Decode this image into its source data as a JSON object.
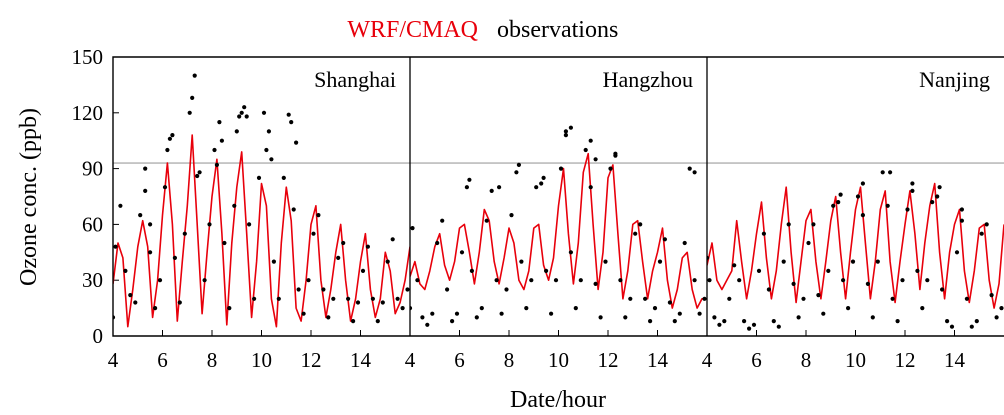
{
  "legend": {
    "model_label": "WRF/CMAQ",
    "obs_label": "observations",
    "model_color": "#e8000b",
    "obs_color": "#000000"
  },
  "chart_data": {
    "type": "line",
    "ylabel": "Ozone conc. (ppb)",
    "xlabel": "Date/hour",
    "ylim": [
      0,
      150
    ],
    "yticks": [
      0,
      30,
      60,
      90,
      120,
      150
    ],
    "reference_line": {
      "y": 93,
      "color": "#bbbbbb"
    },
    "panels": [
      {
        "title": "Shanghai",
        "xlim": [
          4,
          16
        ],
        "xticks": [
          4,
          6,
          8,
          10,
          12,
          14
        ],
        "series": [
          {
            "name": "WRF/CMAQ",
            "style": "line",
            "color": "#e8000b",
            "x": [
              4,
              4.2,
              4.4,
              4.6,
              4.8,
              5,
              5.2,
              5.4,
              5.6,
              5.8,
              6,
              6.2,
              6.4,
              6.6,
              6.8,
              7,
              7.2,
              7.4,
              7.6,
              7.8,
              8,
              8.2,
              8.4,
              8.6,
              8.8,
              9,
              9.2,
              9.4,
              9.6,
              9.8,
              10,
              10.2,
              10.4,
              10.6,
              10.8,
              11,
              11.2,
              11.4,
              11.6,
              11.8,
              12,
              12.2,
              12.4,
              12.6,
              12.8,
              13,
              13.2,
              13.4,
              13.6,
              13.8,
              14,
              14.2,
              14.4,
              14.6,
              14.8,
              15,
              15.2,
              15.4,
              15.6,
              15.8,
              16
            ],
            "y": [
              28,
              50,
              42,
              5,
              25,
              48,
              62,
              48,
              10,
              30,
              65,
              93,
              60,
              8,
              40,
              70,
              108,
              60,
              12,
              45,
              75,
              95,
              55,
              6,
              50,
              80,
              99,
              55,
              10,
              40,
              82,
              70,
              20,
              5,
              50,
              80,
              62,
              15,
              8,
              30,
              60,
              70,
              30,
              10,
              25,
              45,
              60,
              30,
              8,
              20,
              40,
              55,
              25,
              10,
              20,
              45,
              35,
              12,
              18,
              30,
              48
            ]
          },
          {
            "name": "observations",
            "style": "scatter",
            "color": "#000000",
            "x": [
              4,
              4.1,
              4.3,
              4.5,
              4.7,
              4.9,
              5.1,
              5.3,
              5.5,
              5.7,
              5.9,
              6.1,
              6.3,
              6.5,
              6.7,
              6.9,
              7.1,
              7.3,
              7.5,
              7.7,
              7.9,
              8.1,
              8.3,
              8.5,
              8.7,
              8.9,
              9.1,
              9.3,
              9.5,
              9.7,
              9.9,
              10.1,
              10.3,
              10.5,
              10.7,
              10.9,
              11.1,
              11.3,
              11.5,
              11.7,
              11.9,
              12.1,
              12.3,
              12.5,
              12.7,
              12.9,
              13.1,
              13.3,
              13.5,
              13.7,
              13.9,
              14.1,
              14.3,
              14.5,
              14.7,
              14.9,
              15.1,
              15.3,
              15.5,
              15.7,
              15.9,
              7.2,
              7.4,
              9.0,
              9.2,
              9.4,
              10.2,
              10.4,
              11.2,
              11.4,
              8.2,
              8.4,
              6.2,
              6.4,
              5.3,
              5.5
            ],
            "y": [
              10,
              48,
              70,
              35,
              22,
              18,
              65,
              90,
              45,
              15,
              30,
              80,
              106,
              42,
              18,
              55,
              120,
              140,
              88,
              30,
              60,
              100,
              115,
              50,
              15,
              70,
              118,
              123,
              60,
              20,
              85,
              120,
              110,
              40,
              20,
              85,
              119,
              68,
              25,
              12,
              30,
              55,
              65,
              25,
              10,
              20,
              42,
              50,
              20,
              8,
              18,
              35,
              48,
              20,
              8,
              18,
              40,
              52,
              20,
              15,
              25,
              128,
              86,
              110,
              120,
              118,
              100,
              95,
              115,
              104,
              92,
              105,
              100,
              108,
              78,
              60
            ]
          }
        ]
      },
      {
        "title": "Hangzhou",
        "xlim": [
          4,
          16
        ],
        "xticks": [
          4,
          6,
          8,
          10,
          12,
          14
        ],
        "series": [
          {
            "name": "WRF/CMAQ",
            "style": "line",
            "color": "#e8000b",
            "x": [
              4,
              4.2,
              4.4,
              4.6,
              4.8,
              5,
              5.2,
              5.4,
              5.6,
              5.8,
              6,
              6.2,
              6.4,
              6.6,
              6.8,
              7,
              7.2,
              7.4,
              7.6,
              7.8,
              8,
              8.2,
              8.4,
              8.6,
              8.8,
              9,
              9.2,
              9.4,
              9.6,
              9.8,
              10,
              10.2,
              10.4,
              10.6,
              10.8,
              11,
              11.2,
              11.4,
              11.6,
              11.8,
              12,
              12.2,
              12.4,
              12.6,
              12.8,
              13,
              13.2,
              13.4,
              13.6,
              13.8,
              14,
              14.2,
              14.4,
              14.6,
              14.8,
              15,
              15.2,
              15.4,
              15.6,
              15.8,
              16
            ],
            "y": [
              32,
              40,
              28,
              25,
              35,
              48,
              55,
              38,
              30,
              40,
              58,
              60,
              45,
              28,
              45,
              68,
              62,
              40,
              28,
              42,
              58,
              50,
              30,
              25,
              35,
              58,
              60,
              38,
              30,
              42,
              70,
              90,
              55,
              28,
              50,
              88,
              98,
              60,
              25,
              45,
              85,
              92,
              55,
              20,
              35,
              60,
              62,
              40,
              20,
              35,
              45,
              58,
              30,
              15,
              25,
              42,
              45,
              25,
              15,
              20,
              20
            ]
          },
          {
            "name": "observations",
            "style": "scatter",
            "color": "#000000",
            "x": [
              4,
              4.1,
              4.3,
              4.5,
              4.7,
              4.9,
              5.1,
              5.3,
              5.5,
              5.7,
              5.9,
              6.1,
              6.3,
              6.5,
              6.7,
              6.9,
              7.1,
              7.3,
              7.5,
              7.7,
              7.9,
              8.1,
              8.3,
              8.5,
              8.7,
              8.9,
              9.1,
              9.3,
              9.5,
              9.7,
              9.9,
              10.1,
              10.3,
              10.5,
              10.7,
              10.9,
              11.1,
              11.3,
              11.5,
              11.7,
              11.9,
              12.1,
              12.3,
              12.5,
              12.7,
              12.9,
              13.1,
              13.3,
              13.5,
              13.7,
              13.9,
              14.1,
              14.3,
              14.5,
              14.7,
              14.9,
              15.1,
              15.3,
              15.5,
              15.7,
              15.9,
              10.3,
              10.5,
              11.3,
              11.5,
              12.3,
              8.4,
              9.4,
              15.5,
              6.4,
              7.6
            ],
            "y": [
              15,
              58,
              30,
              10,
              6,
              12,
              50,
              62,
              25,
              8,
              12,
              45,
              80,
              35,
              10,
              15,
              62,
              78,
              30,
              12,
              25,
              65,
              88,
              40,
              15,
              30,
              80,
              82,
              35,
              12,
              30,
              90,
              110,
              45,
              15,
              30,
              100,
              80,
              28,
              10,
              40,
              90,
              97,
              30,
              10,
              20,
              55,
              60,
              20,
              8,
              15,
              40,
              52,
              18,
              8,
              12,
              50,
              90,
              30,
              12,
              20,
              108,
              112,
              105,
              95,
              98,
              92,
              85,
              88,
              84,
              80
            ]
          }
        ]
      },
      {
        "title": "Nanjing",
        "xlim": [
          4,
          16
        ],
        "xticks": [
          4,
          6,
          8,
          10,
          12,
          14
        ],
        "series": [
          {
            "name": "WRF/CMAQ",
            "style": "line",
            "color": "#e8000b",
            "x": [
              4,
              4.2,
              4.4,
              4.6,
              4.8,
              5,
              5.2,
              5.4,
              5.6,
              5.8,
              6,
              6.2,
              6.4,
              6.6,
              6.8,
              7,
              7.2,
              7.4,
              7.6,
              7.8,
              8,
              8.2,
              8.4,
              8.6,
              8.8,
              9,
              9.2,
              9.4,
              9.6,
              9.8,
              10,
              10.2,
              10.4,
              10.6,
              10.8,
              11,
              11.2,
              11.4,
              11.6,
              11.8,
              12,
              12.2,
              12.4,
              12.6,
              12.8,
              13,
              13.2,
              13.4,
              13.6,
              13.8,
              14,
              14.2,
              14.4,
              14.6,
              14.8,
              15,
              15.2,
              15.4,
              15.6,
              15.8,
              16
            ],
            "y": [
              38,
              50,
              30,
              25,
              30,
              35,
              62,
              40,
              20,
              35,
              55,
              72,
              42,
              20,
              35,
              60,
              80,
              45,
              18,
              40,
              62,
              68,
              40,
              20,
              40,
              62,
              75,
              45,
              20,
              45,
              68,
              80,
              50,
              20,
              40,
              68,
              78,
              40,
              18,
              40,
              60,
              78,
              55,
              25,
              50,
              70,
              82,
              45,
              20,
              45,
              60,
              68,
              35,
              18,
              35,
              58,
              60,
              30,
              15,
              28,
              60
            ]
          },
          {
            "name": "observations",
            "style": "scatter",
            "color": "#000000",
            "x": [
              4,
              4.1,
              4.3,
              4.5,
              4.7,
              4.9,
              5.1,
              5.3,
              5.5,
              5.7,
              5.9,
              6.1,
              6.3,
              6.5,
              6.7,
              6.9,
              7.1,
              7.3,
              7.5,
              7.7,
              7.9,
              8.1,
              8.3,
              8.5,
              8.7,
              8.9,
              9.1,
              9.3,
              9.5,
              9.7,
              9.9,
              10.1,
              10.3,
              10.5,
              10.7,
              10.9,
              11.1,
              11.3,
              11.5,
              11.7,
              11.9,
              12.1,
              12.3,
              12.5,
              12.7,
              12.9,
              13.1,
              13.3,
              13.5,
              13.7,
              13.9,
              14.1,
              14.3,
              14.5,
              14.7,
              14.9,
              15.1,
              15.3,
              15.5,
              15.7,
              15.9,
              11.4,
              12.3,
              13.4,
              14.3,
              9.4,
              10.3
            ],
            "y": [
              42,
              30,
              10,
              6,
              8,
              20,
              38,
              30,
              8,
              4,
              6,
              35,
              55,
              25,
              8,
              5,
              40,
              60,
              28,
              10,
              20,
              50,
              60,
              22,
              12,
              35,
              70,
              72,
              30,
              15,
              40,
              75,
              65,
              28,
              10,
              40,
              88,
              70,
              20,
              8,
              30,
              68,
              78,
              35,
              15,
              30,
              72,
              75,
              25,
              8,
              5,
              45,
              62,
              20,
              5,
              8,
              55,
              60,
              22,
              10,
              15,
              88,
              82,
              80,
              68,
              76,
              82
            ]
          }
        ]
      }
    ]
  }
}
